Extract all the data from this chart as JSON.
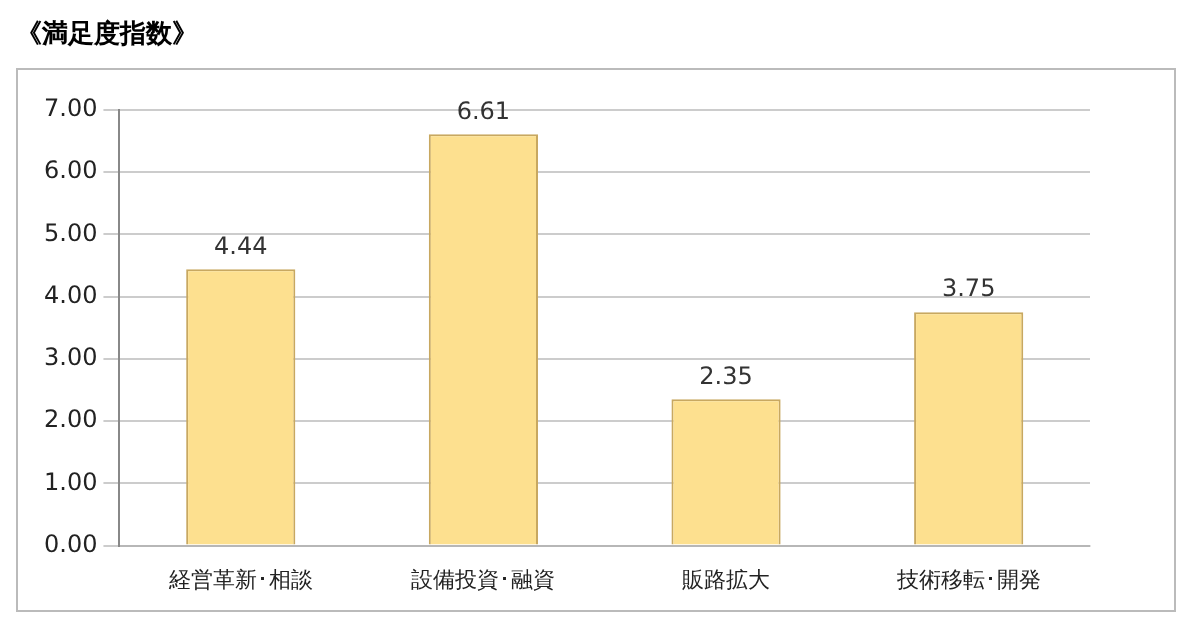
{
  "chart_data": {
    "type": "bar",
    "title": "《満足度指数》",
    "categories": [
      "経営革新･相談",
      "設備投資･融資",
      "販路拡大",
      "技術移転･開発"
    ],
    "values": [
      4.44,
      6.61,
      2.35,
      3.75
    ],
    "color": "#fde08f",
    "ylim": [
      0,
      7
    ],
    "yticks": [
      {
        "value": 0,
        "label": "0.00"
      },
      {
        "value": 1,
        "label": "1.00"
      },
      {
        "value": 2,
        "label": "2.00"
      },
      {
        "value": 3,
        "label": "3.00"
      },
      {
        "value": 4,
        "label": "4.00"
      },
      {
        "value": 5,
        "label": "5.00"
      },
      {
        "value": 6,
        "label": "6.00"
      },
      {
        "value": 7,
        "label": "7.00"
      }
    ],
    "grid": "y",
    "data_labels": true,
    "legend": false
  }
}
